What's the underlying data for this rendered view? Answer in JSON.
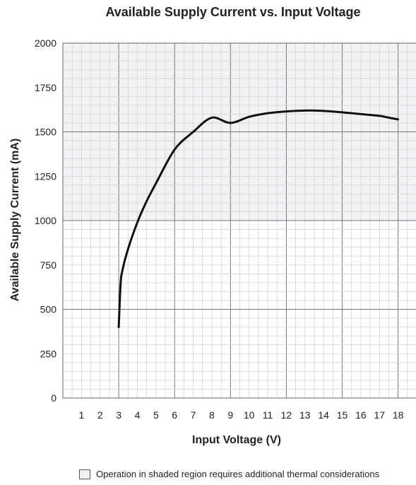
{
  "chart_data": {
    "type": "line",
    "title": "Available Supply Current vs. Input Voltage",
    "xlabel": "Input Voltage (V)",
    "ylabel": "Available Supply Current (mA)",
    "xlim": [
      0,
      19
    ],
    "ylim": [
      0,
      2000
    ],
    "x_ticks": [
      1,
      2,
      3,
      4,
      5,
      6,
      7,
      8,
      9,
      10,
      11,
      12,
      13,
      14,
      15,
      16,
      17,
      18
    ],
    "y_ticks": [
      0,
      250,
      500,
      750,
      1000,
      1250,
      1500,
      1750,
      2000
    ],
    "grid": true,
    "shaded_region": {
      "y_from": 1000,
      "y_to": 2000,
      "color": "#f2f2f4"
    },
    "series": [
      {
        "color": "#111111",
        "x": [
          3.0,
          3.1,
          3.2,
          3.5,
          4.0,
          4.5,
          5.0,
          6.0,
          7.0,
          8.0,
          9.0,
          10.0,
          11.0,
          12.0,
          13.0,
          13.5,
          14.0,
          15.0,
          16.0,
          17.0,
          17.5,
          18.0
        ],
        "y": [
          400,
          640,
          720,
          840,
          990,
          1110,
          1210,
          1400,
          1500,
          1580,
          1550,
          1585,
          1605,
          1615,
          1620,
          1620,
          1618,
          1610,
          1600,
          1590,
          1580,
          1570
        ]
      }
    ]
  },
  "legend": {
    "label": "Operation in shaded region requires additional thermal considerations"
  }
}
